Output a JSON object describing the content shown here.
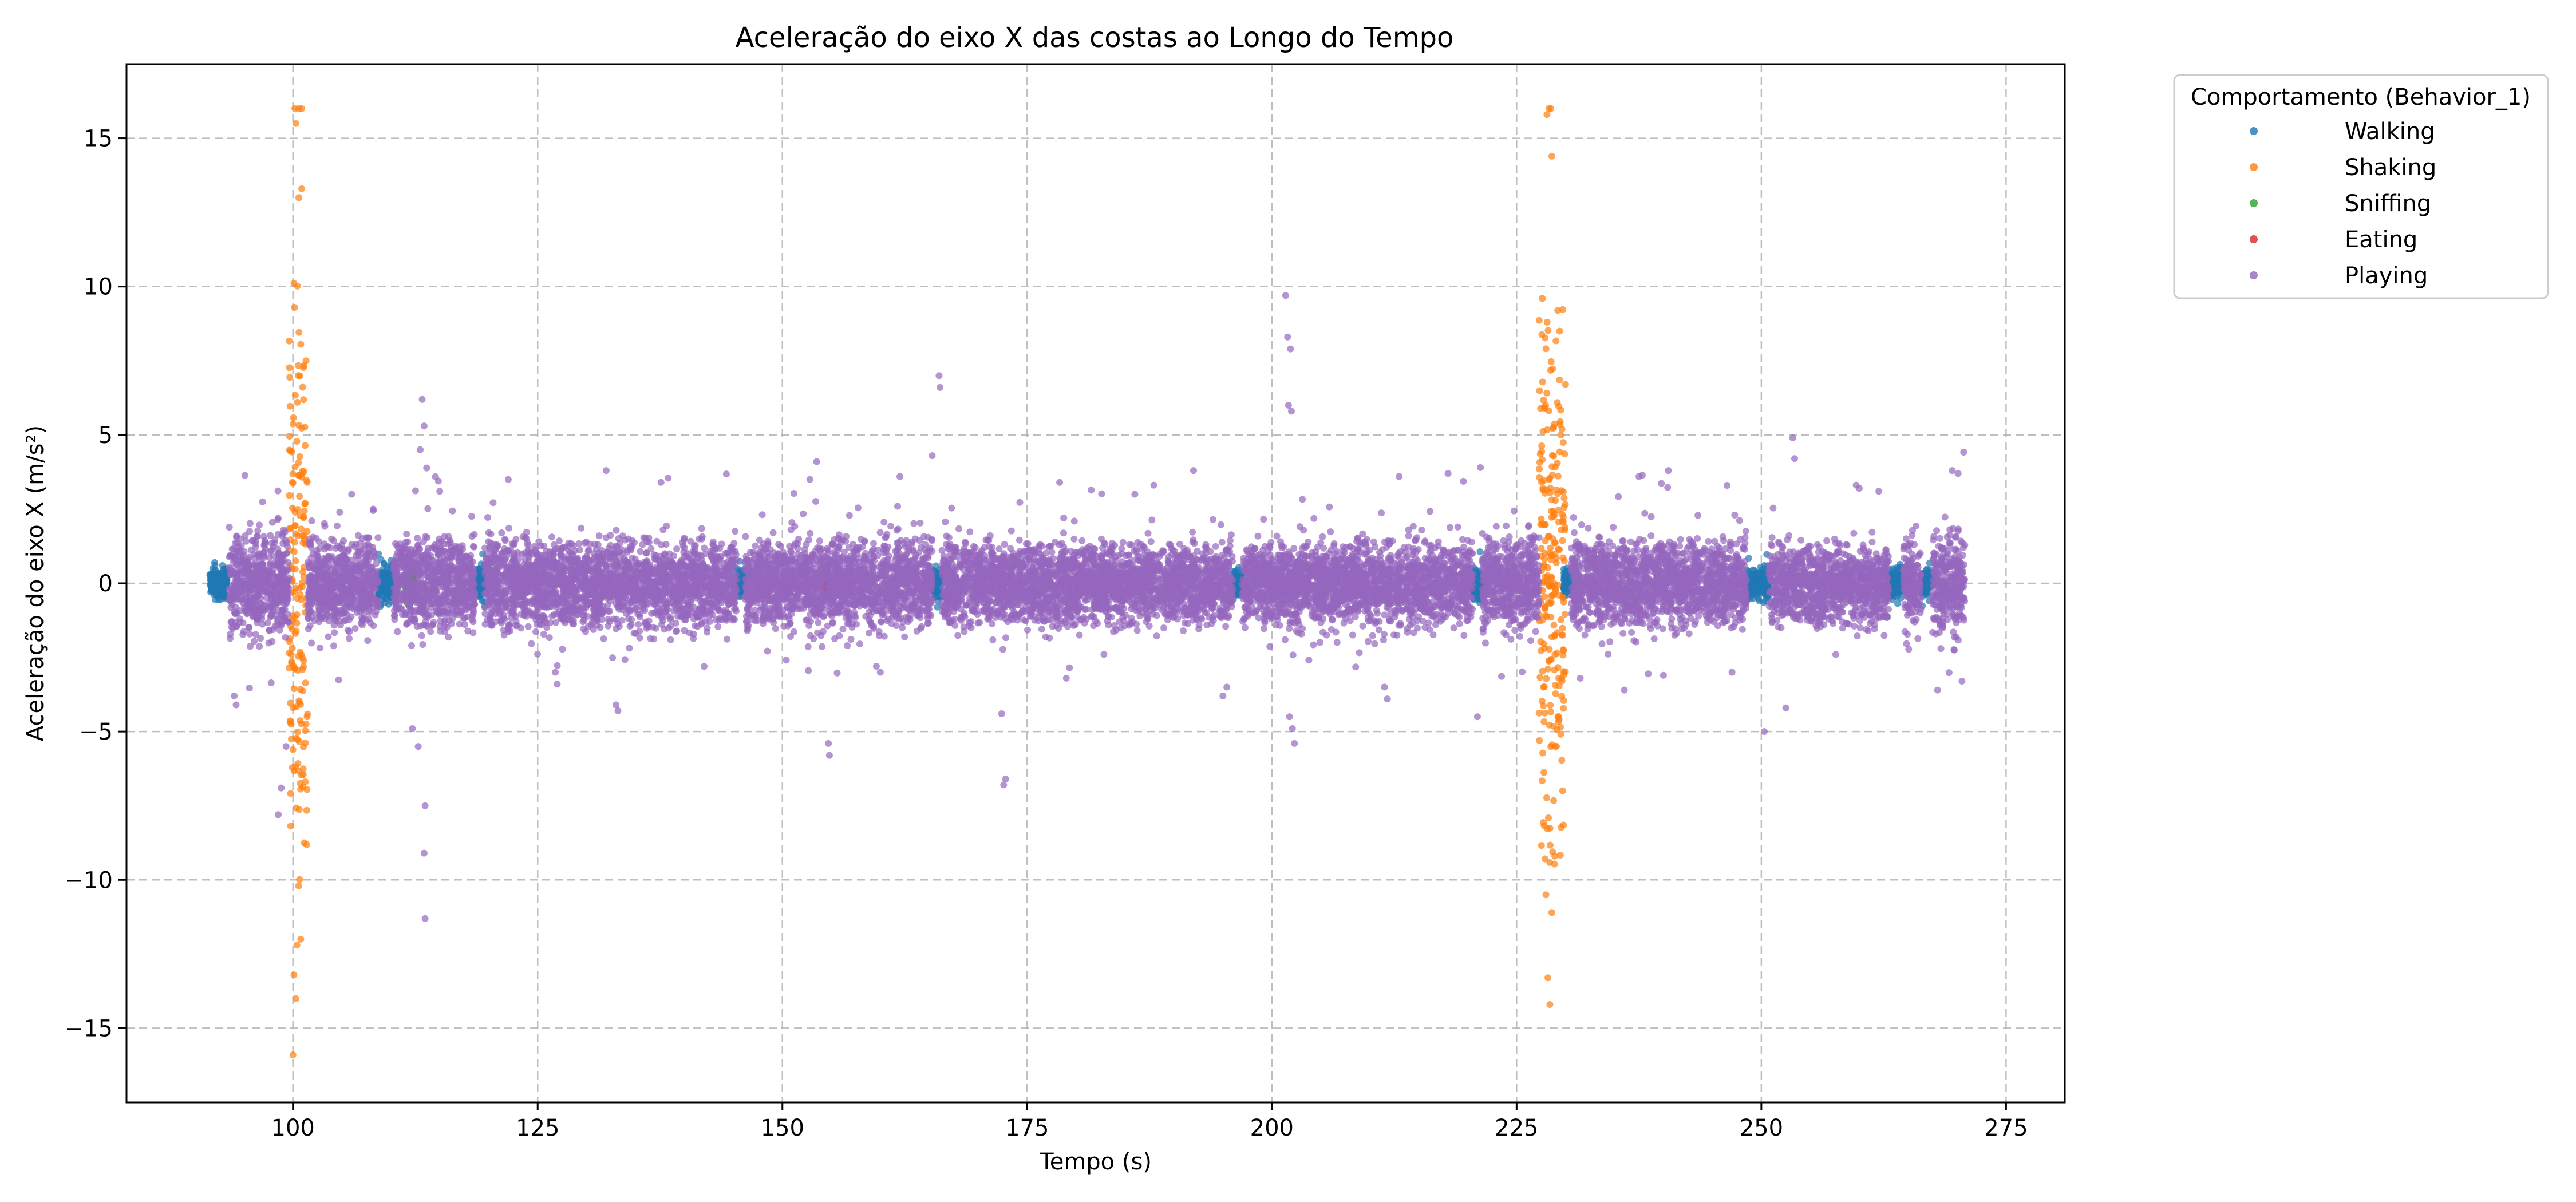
{
  "chart_data": {
    "type": "scatter",
    "title": "Aceleração do eixo X das costas ao Longo do Tempo",
    "xlabel": "Tempo (s)",
    "ylabel": "Aceleração do eixo X (m/s²)",
    "xlim": [
      83,
      281
    ],
    "ylim": [
      -17.5,
      17.5
    ],
    "x_ticks": [
      100,
      125,
      150,
      175,
      200,
      225,
      250,
      275
    ],
    "y_ticks": [
      -15,
      -10,
      -5,
      0,
      5,
      10,
      15
    ],
    "y_tick_labels": [
      "−15",
      "−10",
      "−5",
      "0",
      "5",
      "10",
      "15"
    ],
    "grid": true,
    "legend": {
      "title": "Comportamento (Behavior_1)",
      "placement": "outside-top-right"
    },
    "series": [
      {
        "name": "Walking",
        "color": "#1f77b4",
        "segments": [
          {
            "x0": 91.5,
            "x1": 93.3,
            "amp": 0.55
          },
          {
            "x0": 108.7,
            "x1": 110.3,
            "amp": 0.7
          },
          {
            "x0": 118.6,
            "x1": 119.6,
            "amp": 0.6
          },
          {
            "x0": 145.3,
            "x1": 146.2,
            "amp": 0.5
          },
          {
            "x0": 165.3,
            "x1": 166.3,
            "amp": 0.6
          },
          {
            "x0": 196.0,
            "x1": 197.0,
            "amp": 0.4
          },
          {
            "x0": 220.5,
            "x1": 221.5,
            "amp": 0.55
          },
          {
            "x0": 229.8,
            "x1": 230.6,
            "amp": 0.5
          },
          {
            "x0": 248.5,
            "x1": 250.8,
            "amp": 0.55
          },
          {
            "x0": 263.0,
            "x1": 264.5,
            "amp": 0.5
          },
          {
            "x0": 266.3,
            "x1": 267.5,
            "amp": 0.5
          }
        ],
        "points": [
          [
            91.6,
            -0.3
          ],
          [
            92.0,
            0.7
          ],
          [
            92.4,
            -0.2
          ],
          [
            92.8,
            0.6
          ],
          [
            109.0,
            0.8
          ],
          [
            109.5,
            -0.3
          ],
          [
            110.0,
            0.6
          ],
          [
            221.0,
            0.4
          ],
          [
            249.5,
            -0.4
          ],
          [
            250.3,
            0.6
          ],
          [
            264.0,
            0.5
          ]
        ]
      },
      {
        "name": "Shaking",
        "color": "#ff7f0e",
        "segments": [
          {
            "x0": 99.6,
            "x1": 101.5,
            "amp": 9.5
          },
          {
            "x0": 227.3,
            "x1": 230.0,
            "amp": 9.0
          }
        ],
        "points": [
          [
            100.2,
            16.0
          ],
          [
            100.6,
            16.0
          ],
          [
            100.9,
            16.0
          ],
          [
            100.3,
            15.5
          ],
          [
            100.9,
            13.3
          ],
          [
            100.6,
            13.0
          ],
          [
            100.0,
            -15.9
          ],
          [
            100.3,
            -14.0
          ],
          [
            100.1,
            -13.2
          ],
          [
            100.4,
            -12.2
          ],
          [
            100.8,
            -12.0
          ],
          [
            228.3,
            16.0
          ],
          [
            228.5,
            16.0
          ],
          [
            228.1,
            15.8
          ],
          [
            228.6,
            14.4
          ],
          [
            228.4,
            -14.2
          ],
          [
            228.2,
            -13.3
          ],
          [
            228.0,
            -10.5
          ],
          [
            228.6,
            -11.1
          ],
          [
            228.9,
            -9.2
          ],
          [
            229.2,
            9.2
          ],
          [
            229.4,
            8.5
          ]
        ]
      },
      {
        "name": "Sniffing",
        "color": "#2ca02c",
        "segments": [
          {
            "x0": 111.5,
            "x1": 112.4,
            "amp": 0.4
          }
        ],
        "points": [
          [
            111.6,
            -0.5
          ],
          [
            112.0,
            -0.6
          ],
          [
            112.3,
            -0.3
          ]
        ]
      },
      {
        "name": "Eating",
        "color": "#d62728",
        "segments": [
          {
            "x0": 180.0,
            "x1": 180.7,
            "amp": 0.3
          },
          {
            "x0": 154.2,
            "x1": 154.8,
            "amp": 0.3
          }
        ],
        "points": [
          [
            180.2,
            0.6
          ],
          [
            180.5,
            0.5
          ],
          [
            154.5,
            0.2
          ]
        ]
      },
      {
        "name": "Playing",
        "color": "#9467bd",
        "segments": [
          {
            "x0": 93.5,
            "x1": 99.6,
            "amp": 1.8
          },
          {
            "x0": 101.5,
            "x1": 108.7,
            "amp": 1.6
          },
          {
            "x0": 110.3,
            "x1": 118.6,
            "amp": 1.6
          },
          {
            "x0": 119.6,
            "x1": 145.3,
            "amp": 1.5
          },
          {
            "x0": 146.2,
            "x1": 165.3,
            "amp": 1.5
          },
          {
            "x0": 166.3,
            "x1": 196.0,
            "amp": 1.4
          },
          {
            "x0": 197.0,
            "x1": 220.5,
            "amp": 1.4
          },
          {
            "x0": 221.5,
            "x1": 227.3,
            "amp": 1.6
          },
          {
            "x0": 230.6,
            "x1": 248.5,
            "amp": 1.5
          },
          {
            "x0": 250.8,
            "x1": 263.0,
            "amp": 1.4
          },
          {
            "x0": 264.5,
            "x1": 266.3,
            "amp": 1.5
          },
          {
            "x0": 267.5,
            "x1": 270.8,
            "amp": 1.8
          }
        ],
        "points": [
          [
            113.2,
            6.2
          ],
          [
            113.4,
            5.3
          ],
          [
            113.0,
            4.5
          ],
          [
            113.5,
            -7.5
          ],
          [
            113.4,
            -9.1
          ],
          [
            113.5,
            -11.3
          ],
          [
            112.2,
            -4.9
          ],
          [
            112.8,
            -5.5
          ],
          [
            166.0,
            7.0
          ],
          [
            166.1,
            6.6
          ],
          [
            165.3,
            4.3
          ],
          [
            201.4,
            9.7
          ],
          [
            201.6,
            8.3
          ],
          [
            201.9,
            7.9
          ],
          [
            201.7,
            6.0
          ],
          [
            202.0,
            5.8
          ],
          [
            202.1,
            -4.9
          ],
          [
            202.3,
            -5.4
          ],
          [
            201.8,
            -4.5
          ],
          [
            154.8,
            -5.8
          ],
          [
            154.7,
            -5.4
          ],
          [
            172.8,
            -6.6
          ],
          [
            172.6,
            -6.8
          ],
          [
            172.4,
            -4.4
          ],
          [
            133.2,
            -4.3
          ],
          [
            133.0,
            -4.1
          ],
          [
            94.0,
            -3.8
          ],
          [
            94.2,
            -4.1
          ],
          [
            98.5,
            -7.8
          ],
          [
            98.8,
            -6.9
          ],
          [
            99.3,
            -5.5
          ],
          [
            221.0,
            -4.5
          ],
          [
            221.3,
            3.9
          ],
          [
            253.2,
            4.9
          ],
          [
            253.4,
            4.2
          ],
          [
            252.5,
            -4.2
          ],
          [
            250.3,
            -5.0
          ],
          [
            260.0,
            3.2
          ],
          [
            262.0,
            3.1
          ],
          [
            269.5,
            3.8
          ],
          [
            270.1,
            3.7
          ],
          [
            270.5,
            -3.3
          ],
          [
            268.0,
            -3.6
          ],
          [
            240.5,
            3.8
          ],
          [
            237.5,
            3.6
          ],
          [
            137.6,
            3.4
          ],
          [
            132.0,
            3.8
          ],
          [
            122.0,
            3.5
          ],
          [
            153.5,
            4.1
          ],
          [
            152.8,
            3.5
          ],
          [
            162.0,
            3.6
          ],
          [
            186.0,
            3.0
          ],
          [
            192.0,
            3.8
          ],
          [
            213.0,
            3.6
          ],
          [
            218.0,
            3.7
          ],
          [
            106.0,
            3.0
          ],
          [
            108.2,
            2.5
          ],
          [
            115.0,
            3.1
          ],
          [
            246.5,
            3.3
          ],
          [
            247.0,
            -3.0
          ],
          [
            211.5,
            -3.5
          ],
          [
            211.8,
            -3.9
          ],
          [
            195.0,
            -3.8
          ],
          [
            195.4,
            -3.5
          ],
          [
            179.0,
            -3.2
          ],
          [
            160.0,
            -3.0
          ],
          [
            142.0,
            -2.8
          ],
          [
            127.0,
            -3.4
          ],
          [
            126.8,
            -3.0
          ],
          [
            231.5,
            -3.2
          ],
          [
            236.0,
            -3.6
          ],
          [
            240.0,
            -3.1
          ]
        ]
      }
    ]
  }
}
